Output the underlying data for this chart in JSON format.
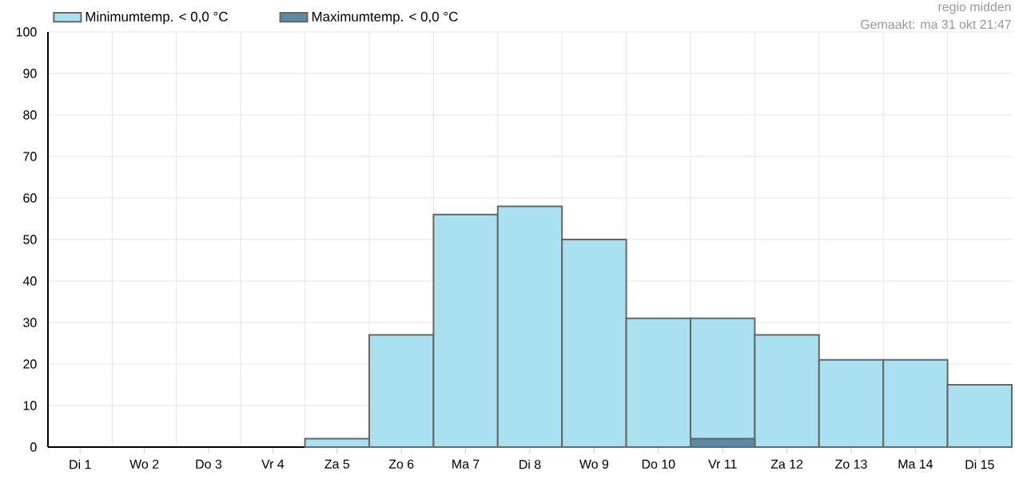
{
  "chart_data": {
    "type": "bar",
    "categories": [
      "Di 1",
      "Wo 2",
      "Do 3",
      "Vr 4",
      "Za 5",
      "Zo 6",
      "Ma 7",
      "Di 8",
      "Wo 9",
      "Do 10",
      "Vr 11",
      "Za 12",
      "Zo 13",
      "Ma 14",
      "Di 15"
    ],
    "series": [
      {
        "name": "Minimumtemp. < 0,0 °C",
        "color": "#aae1f1",
        "values": [
          0,
          0,
          0,
          0,
          2,
          27,
          56,
          58,
          50,
          31,
          31,
          27,
          21,
          21,
          15
        ]
      },
      {
        "name": "Maximumtemp. < 0,0 °C",
        "color": "#5b8aa6",
        "values": [
          0,
          0,
          0,
          0,
          0,
          0,
          0,
          0,
          0,
          0,
          2,
          0,
          0,
          0,
          0
        ]
      }
    ],
    "ylim": [
      0,
      100
    ],
    "yticks": [
      0,
      10,
      20,
      30,
      40,
      50,
      60,
      70,
      80,
      90,
      100
    ],
    "grid": true,
    "legend": "top left",
    "annotations": [
      "regio midden",
      "Gemaakt: ma 31 okt 21:47"
    ]
  }
}
